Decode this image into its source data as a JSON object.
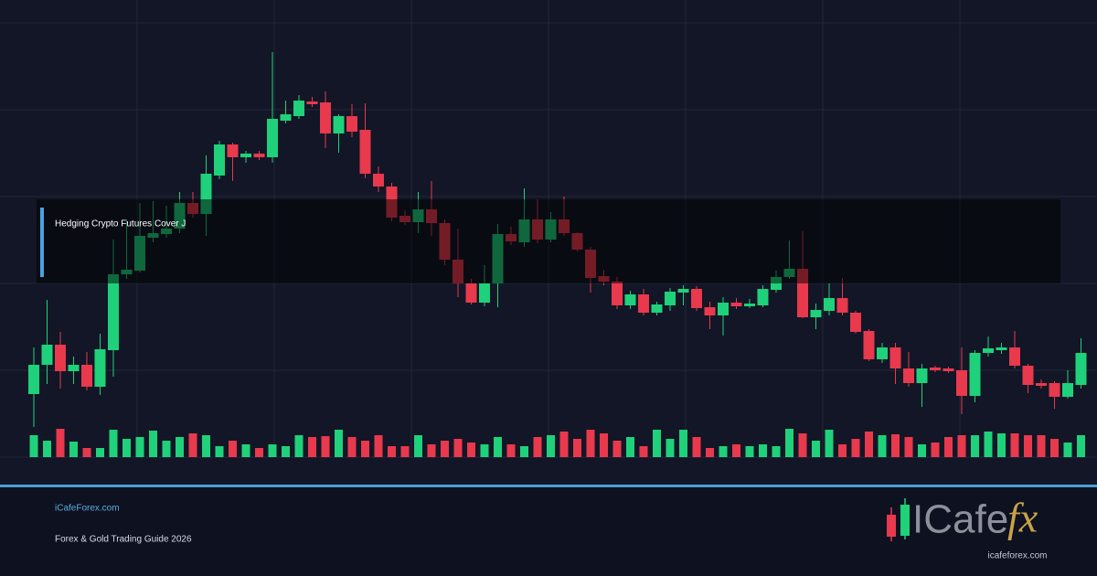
{
  "chart_data": {
    "type": "candlestick",
    "up_color": "#1fd17a",
    "down_color": "#e8394d",
    "ylim": [
      0,
      500
    ],
    "open": [
      69,
      101,
      123,
      94,
      101,
      77,
      117,
      200,
      204,
      240,
      244,
      250,
      278,
      266,
      308,
      342,
      328,
      332,
      328,
      368,
      373,
      389,
      388,
      354,
      373,
      358,
      310,
      296,
      264,
      257,
      271,
      256,
      216,
      190,
      169,
      190,
      244,
      235,
      260,
      238,
      260,
      245,
      227,
      198,
      192,
      166,
      178,
      158,
      166,
      180,
      184,
      164,
      155,
      169,
      165,
      166,
      183,
      197,
      206,
      153,
      160,
      174,
      158,
      138,
      107,
      120,
      97,
      81,
      98,
      97,
      95,
      67,
      114,
      117,
      120,
      100,
      81,
      81,
      66,
      79
    ],
    "high": [
      120,
      172,
      137,
      110,
      115,
      135,
      238,
      260,
      278,
      280,
      275,
      290,
      290,
      330,
      346,
      344,
      335,
      335,
      443,
      390,
      396,
      394,
      400,
      375,
      386,
      387,
      318,
      300,
      270,
      290,
      302,
      260,
      250,
      195,
      210,
      255,
      252,
      294,
      282,
      268,
      285,
      246,
      230,
      205,
      197,
      182,
      184,
      170,
      185,
      188,
      187,
      170,
      175,
      174,
      173,
      188,
      204,
      237,
      247,
      168,
      190,
      196,
      160,
      140,
      125,
      125,
      115,
      102,
      100,
      99,
      120,
      117,
      132,
      125,
      138,
      102,
      85,
      83,
      95,
      130
    ],
    "low": [
      33,
      80,
      75,
      80,
      73,
      68,
      88,
      195,
      202,
      235,
      240,
      245,
      262,
      242,
      304,
      302,
      322,
      325,
      322,
      365,
      370,
      383,
      338,
      333,
      350,
      305,
      290,
      258,
      254,
      245,
      242,
      210,
      175,
      167,
      165,
      164,
      232,
      230,
      234,
      235,
      242,
      225,
      180,
      188,
      162,
      162,
      155,
      155,
      160,
      166,
      160,
      140,
      133,
      162,
      163,
      164,
      180,
      195,
      152,
      140,
      155,
      155,
      135,
      105,
      103,
      80,
      77,
      55,
      93,
      92,
      47,
      60,
      110,
      113,
      97,
      70,
      75,
      53,
      64,
      75
    ],
    "close": [
      101,
      123,
      94,
      101,
      77,
      118,
      200,
      205,
      242,
      245,
      250,
      278,
      266,
      310,
      342,
      328,
      332,
      328,
      370,
      375,
      390,
      386,
      354,
      373,
      356,
      310,
      296,
      262,
      257,
      271,
      256,
      216,
      190,
      169,
      190,
      244,
      236,
      260,
      238,
      260,
      245,
      227,
      196,
      192,
      166,
      178,
      158,
      167,
      181,
      184,
      163,
      155,
      169,
      165,
      168,
      184,
      197,
      206,
      153,
      161,
      174,
      158,
      137,
      107,
      120,
      97,
      81,
      97,
      95,
      94,
      67,
      114,
      119,
      120,
      100,
      79,
      78,
      66,
      81,
      114
    ],
    "volume": [
      24,
      18,
      31,
      17,
      10,
      10,
      30,
      20,
      22,
      29,
      18,
      22,
      26,
      24,
      12,
      18,
      14,
      10,
      14,
      12,
      24,
      22,
      23,
      30,
      22,
      18,
      24,
      12,
      12,
      24,
      14,
      18,
      20,
      16,
      14,
      22,
      14,
      12,
      22,
      24,
      28,
      20,
      30,
      26,
      18,
      22,
      12,
      30,
      20,
      30,
      22,
      10,
      12,
      14,
      12,
      14,
      12,
      31,
      26,
      18,
      30,
      14,
      20,
      28,
      24,
      25,
      22,
      14,
      16,
      22,
      24,
      24,
      28,
      26,
      26,
      24,
      24,
      20,
      16,
      24
    ]
  },
  "overlay_label": "Hedging Crypto Futures Cover J",
  "footer": {
    "site": "iCafeForex.com",
    "subtitle": "Forex & Gold Trading Guide 2026"
  },
  "logo": {
    "brand": "ICafe",
    "accent": "fx",
    "url": "icafeforex.com"
  }
}
